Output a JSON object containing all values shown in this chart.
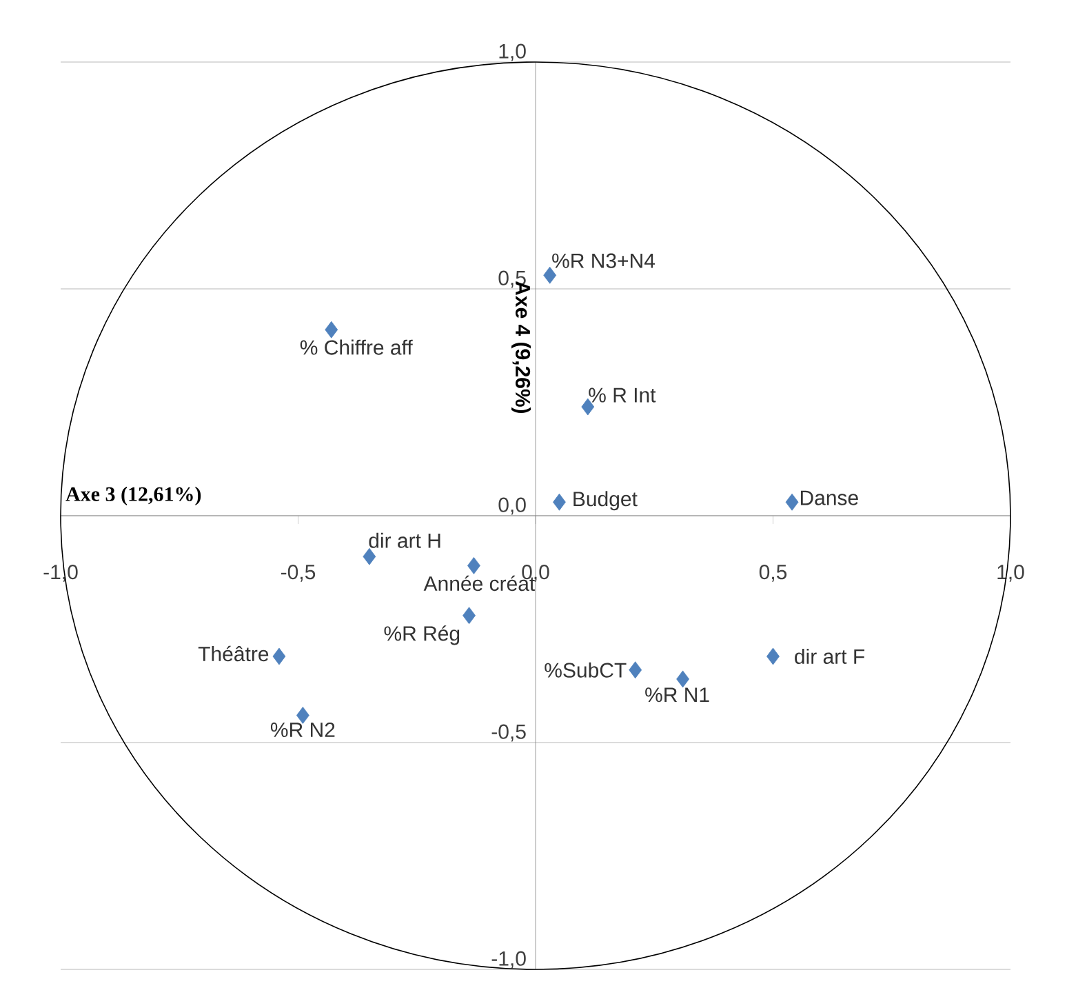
{
  "chart_data": {
    "type": "scatter",
    "xlabel": "Axe 3 (12,61%)",
    "ylabel": "Axe 4 (9,26%)",
    "xlim": [
      -1.0,
      1.0
    ],
    "ylim": [
      -1.0,
      1.0
    ],
    "xticks": [
      {
        "value": -1.0,
        "label": "-1,0"
      },
      {
        "value": -0.5,
        "label": "-0,5"
      },
      {
        "value": 0,
        "label": "0,0"
      },
      {
        "value": 0.5,
        "label": "0,5"
      },
      {
        "value": 1.0,
        "label": "1,0"
      }
    ],
    "yticks": [
      {
        "value": -1.0,
        "label": "-1,0"
      },
      {
        "value": -0.5,
        "label": "-0,5"
      },
      {
        "value": 0,
        "label": "0,0"
      },
      {
        "value": 0.5,
        "label": "0,5"
      },
      {
        "value": 1.0,
        "label": "1,0"
      }
    ],
    "grid": "y",
    "marker": "diamond",
    "series": [
      {
        "name": "%R N3+N4",
        "color": "#4f81bd",
        "x": [
          0.03
        ],
        "values": [
          0.53
        ]
      },
      {
        "name": "% Chiffre aff",
        "color": "#4f81bd",
        "x": [
          -0.43
        ],
        "values": [
          0.41
        ]
      },
      {
        "name": "% R Int",
        "color": "#4f81bd",
        "x": [
          0.11
        ],
        "values": [
          0.24
        ]
      },
      {
        "name": "Budget",
        "color": "#4f81bd",
        "x": [
          0.05
        ],
        "values": [
          0.03
        ]
      },
      {
        "name": "Danse",
        "color": "#4f81bd",
        "x": [
          0.54
        ],
        "values": [
          0.03
        ]
      },
      {
        "name": "dir art H",
        "color": "#4f81bd",
        "x": [
          -0.35
        ],
        "values": [
          -0.09
        ]
      },
      {
        "name": "Année créat",
        "color": "#4f81bd",
        "x": [
          -0.13
        ],
        "values": [
          -0.11
        ]
      },
      {
        "name": "%R Rég",
        "color": "#4f81bd",
        "x": [
          -0.14
        ],
        "values": [
          -0.22
        ]
      },
      {
        "name": "Théâtre",
        "color": "#4f81bd",
        "x": [
          -0.54
        ],
        "values": [
          -0.31
        ]
      },
      {
        "name": "dir art F",
        "color": "#4f81bd",
        "x": [
          0.5
        ],
        "values": [
          -0.31
        ]
      },
      {
        "name": "%SubCT",
        "color": "#4f81bd",
        "x": [
          0.21
        ],
        "values": [
          -0.34
        ]
      },
      {
        "name": "%R N1",
        "color": "#4f81bd",
        "x": [
          0.31
        ],
        "values": [
          -0.36
        ]
      },
      {
        "name": "%R N2",
        "color": "#4f81bd",
        "x": [
          -0.49
        ],
        "values": [
          -0.44
        ]
      }
    ]
  }
}
